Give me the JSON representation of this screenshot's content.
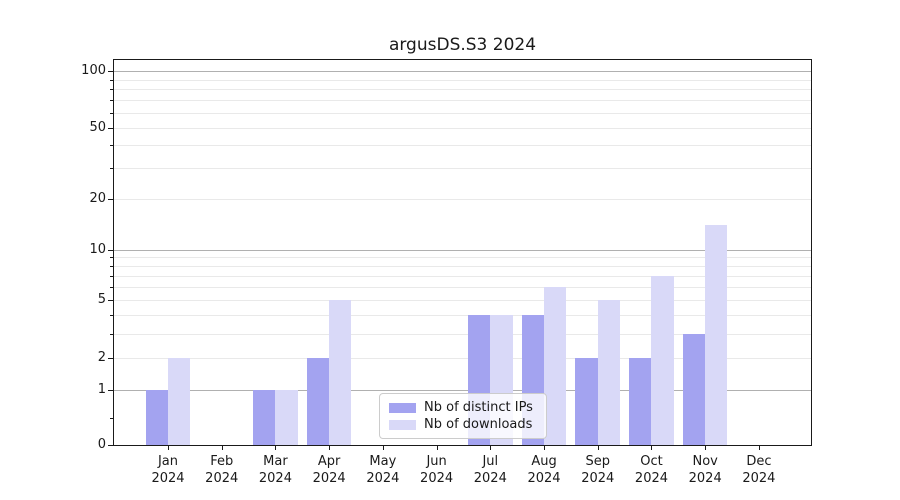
{
  "figure": {
    "background": "#ffffff"
  },
  "chart_data": {
    "type": "bar",
    "title": "argusDS.S3 2024",
    "x_months": [
      "Jan",
      "Feb",
      "Mar",
      "Apr",
      "May",
      "Jun",
      "Jul",
      "Aug",
      "Sep",
      "Oct",
      "Nov",
      "Dec"
    ],
    "x_year": "2024",
    "categories": [
      "Jan 2024",
      "Feb 2024",
      "Mar 2024",
      "Apr 2024",
      "May 2024",
      "Jun 2024",
      "Jul 2024",
      "Aug 2024",
      "Sep 2024",
      "Oct 2024",
      "Nov 2024",
      "Dec 2024"
    ],
    "series": [
      {
        "name": "Nb of distinct IPs",
        "color": "#a3a3f0",
        "values": [
          1,
          0,
          1,
          2,
          0,
          0,
          4,
          4,
          2,
          2,
          3,
          0
        ]
      },
      {
        "name": "Nb of downloads",
        "color": "#d9d9f8",
        "values": [
          2,
          0,
          1,
          5,
          0,
          0,
          4,
          6,
          5,
          7,
          14,
          0
        ]
      }
    ],
    "yscale": "symlog",
    "ylim": [
      0,
      115
    ],
    "yticks": [
      0,
      1,
      2,
      5,
      10,
      20,
      50,
      100
    ],
    "yticks_minor": [
      0.5,
      3,
      4,
      6,
      7,
      8,
      9,
      30,
      40,
      60,
      70,
      80,
      90
    ],
    "major_grid_at": [
      1,
      10,
      100
    ],
    "grid": true,
    "legend_position": "inside-lower-center",
    "colors": {
      "major_grid": "#b0b0b0",
      "minor_grid": "#e9e9e9",
      "spine": "#1a1a1a",
      "text": "#1a1a1a"
    }
  }
}
